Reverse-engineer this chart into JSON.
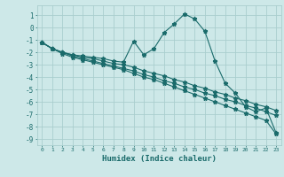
{
  "xlabel": "Humidex (Indice chaleur)",
  "background_color": "#cde8e8",
  "grid_color": "#aacece",
  "line_color": "#1a6b6b",
  "xlim": [
    -0.5,
    23.5
  ],
  "ylim": [
    -9.5,
    1.8
  ],
  "yticks": [
    1,
    0,
    -1,
    -2,
    -3,
    -4,
    -5,
    -6,
    -7,
    -8,
    -9
  ],
  "xticks": [
    0,
    1,
    2,
    3,
    4,
    5,
    6,
    7,
    8,
    9,
    10,
    11,
    12,
    13,
    14,
    15,
    16,
    17,
    18,
    19,
    20,
    21,
    22,
    23
  ],
  "line1_x": [
    0,
    1,
    2,
    3,
    4,
    5,
    6,
    7,
    8,
    9,
    10,
    11,
    12,
    13,
    14,
    15,
    16,
    17,
    18,
    19,
    20,
    21,
    22,
    23
  ],
  "line1_y": [
    -1.2,
    -1.7,
    -2.0,
    -2.2,
    -2.3,
    -2.4,
    -2.5,
    -2.7,
    -2.8,
    -1.1,
    -2.2,
    -1.7,
    -0.4,
    0.3,
    1.1,
    0.7,
    -0.3,
    -2.7,
    -4.5,
    -5.3,
    -6.4,
    -6.8,
    -6.5,
    -8.5
  ],
  "line2_x": [
    0,
    1,
    2,
    3,
    4,
    5,
    6,
    7,
    8,
    9,
    10,
    11,
    12,
    13,
    14,
    15,
    16,
    17,
    18,
    19,
    20,
    21,
    22,
    23
  ],
  "line2_y": [
    -1.2,
    -1.7,
    -2.0,
    -2.2,
    -2.4,
    -2.5,
    -2.7,
    -2.9,
    -3.0,
    -3.2,
    -3.5,
    -3.7,
    -3.9,
    -4.2,
    -4.4,
    -4.7,
    -4.9,
    -5.2,
    -5.4,
    -5.7,
    -5.9,
    -6.2,
    -6.4,
    -6.7
  ],
  "line3_x": [
    0,
    1,
    2,
    3,
    4,
    5,
    6,
    7,
    8,
    9,
    10,
    11,
    12,
    13,
    14,
    15,
    16,
    17,
    18,
    19,
    20,
    21,
    22,
    23
  ],
  "line3_y": [
    -1.2,
    -1.7,
    -2.0,
    -2.3,
    -2.5,
    -2.7,
    -2.9,
    -3.1,
    -3.3,
    -3.5,
    -3.8,
    -4.0,
    -4.3,
    -4.5,
    -4.8,
    -5.0,
    -5.3,
    -5.5,
    -5.8,
    -6.0,
    -6.3,
    -6.5,
    -6.8,
    -7.1
  ],
  "line4_x": [
    0,
    1,
    2,
    3,
    4,
    5,
    6,
    7,
    8,
    9,
    10,
    11,
    12,
    13,
    14,
    15,
    16,
    17,
    18,
    19,
    20,
    21,
    22,
    23
  ],
  "line4_y": [
    -1.2,
    -1.7,
    -2.1,
    -2.4,
    -2.6,
    -2.8,
    -3.0,
    -3.2,
    -3.4,
    -3.7,
    -4.0,
    -4.2,
    -4.5,
    -4.8,
    -5.1,
    -5.4,
    -5.7,
    -6.0,
    -6.3,
    -6.6,
    -6.9,
    -7.2,
    -7.5,
    -8.6
  ]
}
